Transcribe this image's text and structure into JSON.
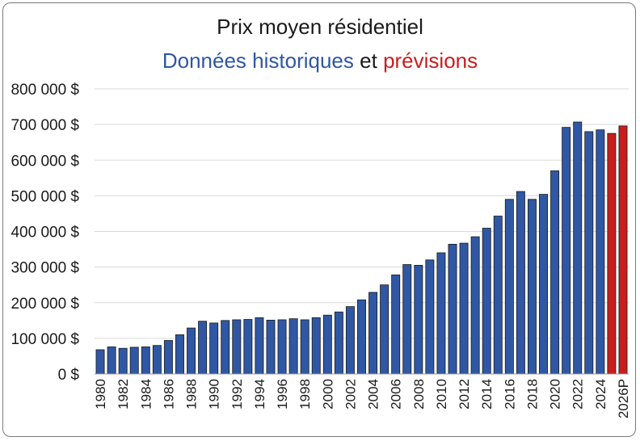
{
  "chart_data": {
    "type": "bar",
    "title": "Prix moyen résidentiel",
    "subtitle": {
      "part1": "Données historiques",
      "part2": "et",
      "part3": "prévisions"
    },
    "xlabel": "",
    "ylabel": "",
    "ylim": [
      0,
      800000
    ],
    "yticks": [
      "0 $",
      "100 000 $",
      "200 000 $",
      "300 000 $",
      "400 000 $",
      "500 000 $",
      "600 000 $",
      "700 000 $",
      "800 000 $"
    ],
    "grid": true,
    "colors": {
      "historical": "#2f57a4",
      "forecast": "#c81e1e",
      "grid": "#d9d9d9"
    },
    "categories": [
      "1980",
      "1981",
      "1982",
      "1983",
      "1984",
      "1985",
      "1986",
      "1987",
      "1988",
      "1989",
      "1990",
      "1991",
      "1992",
      "1993",
      "1994",
      "1995",
      "1996",
      "1997",
      "1998",
      "1999",
      "2000",
      "2001",
      "2002",
      "2003",
      "2004",
      "2005",
      "2006",
      "2007",
      "2008",
      "2009",
      "2010",
      "2011",
      "2012",
      "2013",
      "2014",
      "2015",
      "2016",
      "2017",
      "2018",
      "2019",
      "2020",
      "2021",
      "2022",
      "2023",
      "2024",
      "2025",
      "2026P"
    ],
    "tick_labels": [
      "1980",
      "",
      "1982",
      "",
      "1984",
      "",
      "1986",
      "",
      "1988",
      "",
      "1990",
      "",
      "1992",
      "",
      "1994",
      "",
      "1996",
      "",
      "1998",
      "",
      "2000",
      "",
      "2002",
      "",
      "2004",
      "",
      "2006",
      "",
      "2008",
      "",
      "2010",
      "",
      "2012",
      "",
      "2014",
      "",
      "2016",
      "",
      "2018",
      "",
      "2020",
      "",
      "2022",
      "",
      "2024",
      "",
      "2026P"
    ],
    "values": [
      68000,
      76000,
      72000,
      75000,
      76000,
      80000,
      94000,
      110000,
      129000,
      148000,
      143000,
      150000,
      152000,
      153000,
      158000,
      151000,
      152000,
      155000,
      152000,
      158000,
      165000,
      174000,
      189000,
      208000,
      229000,
      250000,
      278000,
      307000,
      305000,
      320000,
      340000,
      364000,
      367000,
      385000,
      409000,
      443000,
      490000,
      512000,
      490000,
      504000,
      570000,
      692000,
      707000,
      680000,
      685000,
      675000,
      696000
    ],
    "forecast_flags": [
      false,
      false,
      false,
      false,
      false,
      false,
      false,
      false,
      false,
      false,
      false,
      false,
      false,
      false,
      false,
      false,
      false,
      false,
      false,
      false,
      false,
      false,
      false,
      false,
      false,
      false,
      false,
      false,
      false,
      false,
      false,
      false,
      false,
      false,
      false,
      false,
      false,
      false,
      false,
      false,
      false,
      false,
      false,
      false,
      false,
      true,
      true
    ]
  }
}
